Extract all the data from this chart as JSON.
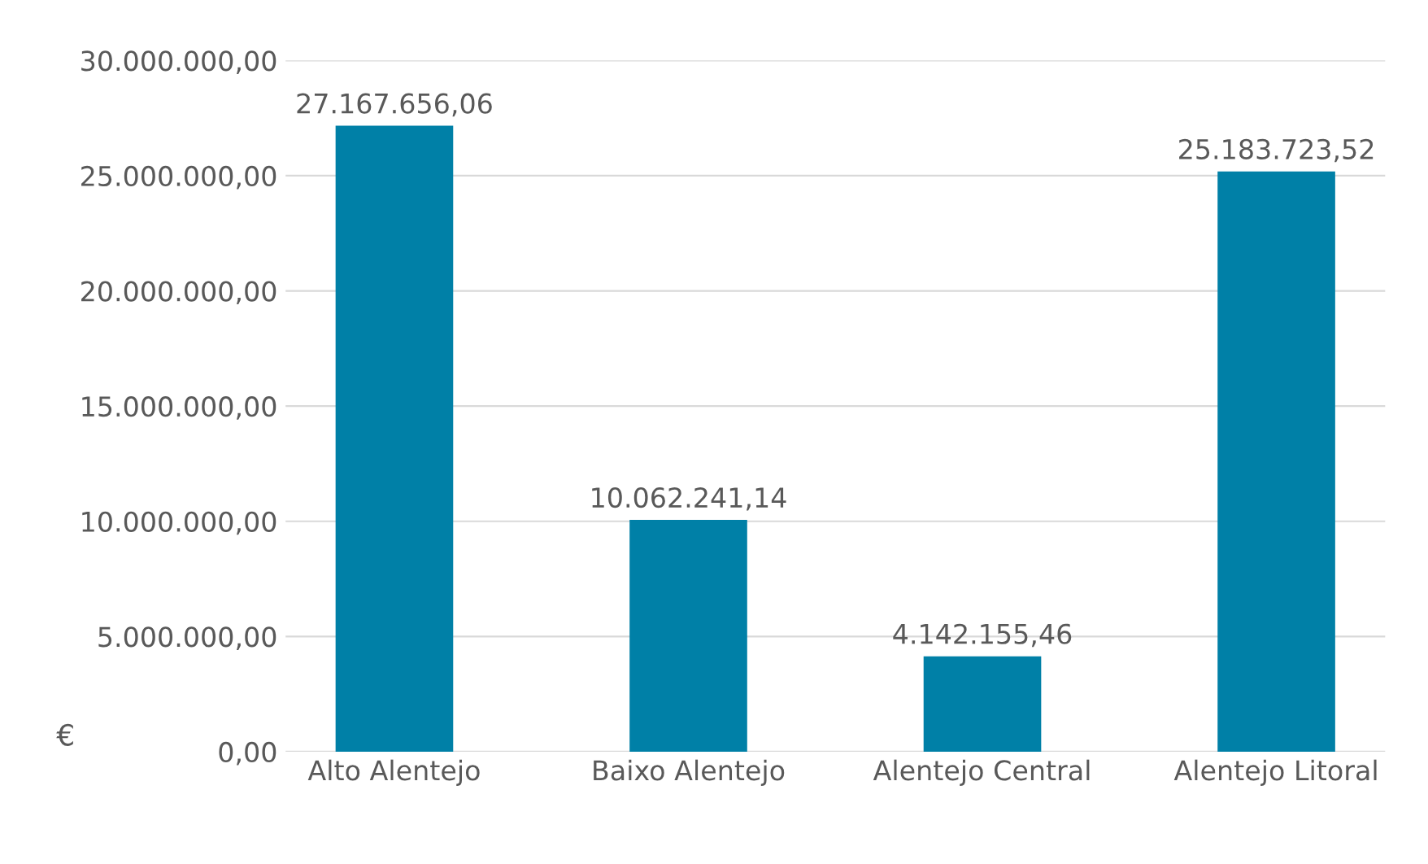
{
  "chart_data": {
    "type": "bar",
    "categories": [
      "Alto Alentejo",
      "Baixo Alentejo",
      "Alentejo Central",
      "Alentejo Litoral"
    ],
    "values": [
      27167656.06,
      10062241.14,
      4142155.46,
      25183723.52
    ],
    "value_labels": [
      "27.167.656,06",
      "10.062.241,14",
      "4.142.155,46",
      "25.183.723,52"
    ],
    "color": "#0080a7",
    "ylabel": "€",
    "ylim": [
      0,
      30000000
    ],
    "yticks": [
      {
        "value": 0,
        "label": "0,00"
      },
      {
        "value": 5000000,
        "label": "5.000.000,00"
      },
      {
        "value": 10000000,
        "label": "10.000.000,00"
      },
      {
        "value": 15000000,
        "label": "15.000.000,00"
      },
      {
        "value": 20000000,
        "label": "20.000.000,00"
      },
      {
        "value": 25000000,
        "label": "25.000.000,00"
      },
      {
        "value": 30000000,
        "label": "30.000.000,00"
      }
    ],
    "grid": "y"
  }
}
